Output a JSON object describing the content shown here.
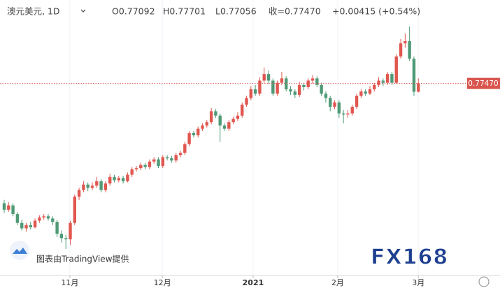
{
  "header": {
    "symbol": "澳元美元, 1D",
    "open": "O0.77092",
    "high": "H0.77701",
    "low": "L0.77056",
    "close": "收=0.77470",
    "change": "+0.00415 (+0.54%)"
  },
  "chart_data": {
    "type": "candlestick",
    "up_color": "#e0574f",
    "down_color": "#4f9a76",
    "open": [
      0.72,
      0.717,
      0.719,
      0.715,
      0.711,
      0.7085,
      0.71,
      0.709,
      0.712,
      0.7135,
      0.714,
      0.713,
      0.7115,
      0.706,
      0.704,
      0.7035,
      0.711,
      0.723,
      0.726,
      0.7285,
      0.727,
      0.728,
      0.73,
      0.726,
      0.729,
      0.732,
      0.7305,
      0.7315,
      0.73,
      0.733,
      0.7355,
      0.736,
      0.7375,
      0.7365,
      0.739,
      0.74,
      0.737,
      0.741,
      0.7405,
      0.7395,
      0.742,
      0.743,
      0.747,
      0.752,
      0.751,
      0.754,
      0.7555,
      0.757,
      0.762,
      0.76,
      0.7555,
      0.754,
      0.757,
      0.7585,
      0.76,
      0.765,
      0.768,
      0.772,
      0.77,
      0.776,
      0.779,
      0.776,
      0.77,
      0.775,
      0.777,
      0.772,
      0.771,
      0.7695,
      0.774,
      0.773,
      0.776,
      0.777,
      0.774,
      0.77,
      0.768,
      0.764,
      0.766,
      0.761,
      0.7605,
      0.761,
      0.764,
      0.769,
      0.771,
      0.77,
      0.772,
      0.774,
      0.776,
      0.775,
      0.779,
      0.775,
      0.787,
      0.793,
      0.794,
      0.786,
      0.77092
    ],
    "high": [
      0.7215,
      0.7205,
      0.72,
      0.716,
      0.7125,
      0.711,
      0.7115,
      0.713,
      0.7145,
      0.715,
      0.715,
      0.714,
      0.7125,
      0.7075,
      0.7055,
      0.712,
      0.724,
      0.727,
      0.73,
      0.7295,
      0.7295,
      0.732,
      0.731,
      0.73,
      0.7335,
      0.733,
      0.7325,
      0.7325,
      0.734,
      0.7365,
      0.737,
      0.7385,
      0.7385,
      0.74,
      0.741,
      0.741,
      0.742,
      0.742,
      0.7415,
      0.743,
      0.744,
      0.748,
      0.753,
      0.753,
      0.755,
      0.7565,
      0.758,
      0.7635,
      0.763,
      0.761,
      0.7565,
      0.758,
      0.7595,
      0.7615,
      0.766,
      0.769,
      0.7735,
      0.774,
      0.7775,
      0.782,
      0.7805,
      0.777,
      0.776,
      0.78,
      0.778,
      0.7735,
      0.772,
      0.7755,
      0.775,
      0.777,
      0.7785,
      0.778,
      0.775,
      0.771,
      0.769,
      0.767,
      0.767,
      0.7625,
      0.7625,
      0.765,
      0.77,
      0.772,
      0.772,
      0.7735,
      0.775,
      0.7775,
      0.777,
      0.78,
      0.78,
      0.788,
      0.795,
      0.7975,
      0.8007,
      0.787,
      0.77701
    ],
    "low": [
      0.7155,
      0.716,
      0.714,
      0.71,
      0.7075,
      0.707,
      0.708,
      0.7085,
      0.711,
      0.7125,
      0.712,
      0.71,
      0.7045,
      0.702,
      0.6991,
      0.701,
      0.71,
      0.7215,
      0.725,
      0.7255,
      0.726,
      0.727,
      0.725,
      0.725,
      0.728,
      0.7295,
      0.7295,
      0.729,
      0.7295,
      0.732,
      0.7345,
      0.735,
      0.7355,
      0.7355,
      0.738,
      0.736,
      0.736,
      0.7395,
      0.7385,
      0.7385,
      0.741,
      0.742,
      0.746,
      0.75,
      0.75,
      0.753,
      0.7545,
      0.756,
      0.759,
      0.748,
      0.753,
      0.753,
      0.756,
      0.7575,
      0.759,
      0.764,
      0.767,
      0.769,
      0.769,
      0.775,
      0.7745,
      0.769,
      0.769,
      0.774,
      0.771,
      0.7695,
      0.768,
      0.7685,
      0.7715,
      0.772,
      0.7745,
      0.773,
      0.769,
      0.766,
      0.762,
      0.763,
      0.759,
      0.7565,
      0.759,
      0.76,
      0.763,
      0.768,
      0.769,
      0.7695,
      0.771,
      0.773,
      0.7735,
      0.774,
      0.774,
      0.7745,
      0.786,
      0.791,
      0.785,
      0.769,
      0.77056
    ],
    "close": [
      0.717,
      0.719,
      0.715,
      0.711,
      0.7085,
      0.71,
      0.709,
      0.712,
      0.7135,
      0.714,
      0.713,
      0.7115,
      0.706,
      0.704,
      0.7035,
      0.711,
      0.723,
      0.726,
      0.7285,
      0.727,
      0.728,
      0.73,
      0.726,
      0.729,
      0.732,
      0.7305,
      0.7315,
      0.73,
      0.733,
      0.7355,
      0.736,
      0.7375,
      0.7365,
      0.739,
      0.74,
      0.737,
      0.741,
      0.7405,
      0.7395,
      0.742,
      0.743,
      0.747,
      0.752,
      0.751,
      0.754,
      0.7555,
      0.757,
      0.762,
      0.76,
      0.7555,
      0.754,
      0.757,
      0.7585,
      0.76,
      0.765,
      0.768,
      0.772,
      0.77,
      0.776,
      0.779,
      0.776,
      0.77,
      0.775,
      0.777,
      0.772,
      0.771,
      0.7695,
      0.774,
      0.773,
      0.776,
      0.777,
      0.774,
      0.77,
      0.768,
      0.764,
      0.766,
      0.761,
      0.7605,
      0.761,
      0.764,
      0.769,
      0.771,
      0.77,
      0.772,
      0.774,
      0.776,
      0.775,
      0.779,
      0.775,
      0.787,
      0.793,
      0.794,
      0.786,
      0.7709,
      0.7747
    ],
    "xlim": [
      -0.95,
      103.8
    ],
    "ylim": [
      0.687,
      0.8128
    ],
    "xticks": [
      {
        "value": 14.9,
        "label": "11月"
      },
      {
        "value": 35.9,
        "label": "12月"
      },
      {
        "value": 56.5,
        "label": "2021"
      },
      {
        "value": 75.7,
        "label": "2月"
      },
      {
        "value": 94,
        "label": "3月"
      }
    ],
    "last_price": {
      "value": 0.7747,
      "label": "0.77470"
    },
    "last_price_color": "#d9554e",
    "grid": true
  },
  "watermark": {
    "credit": "图表由TradingView提供",
    "logo": "FX168"
  }
}
